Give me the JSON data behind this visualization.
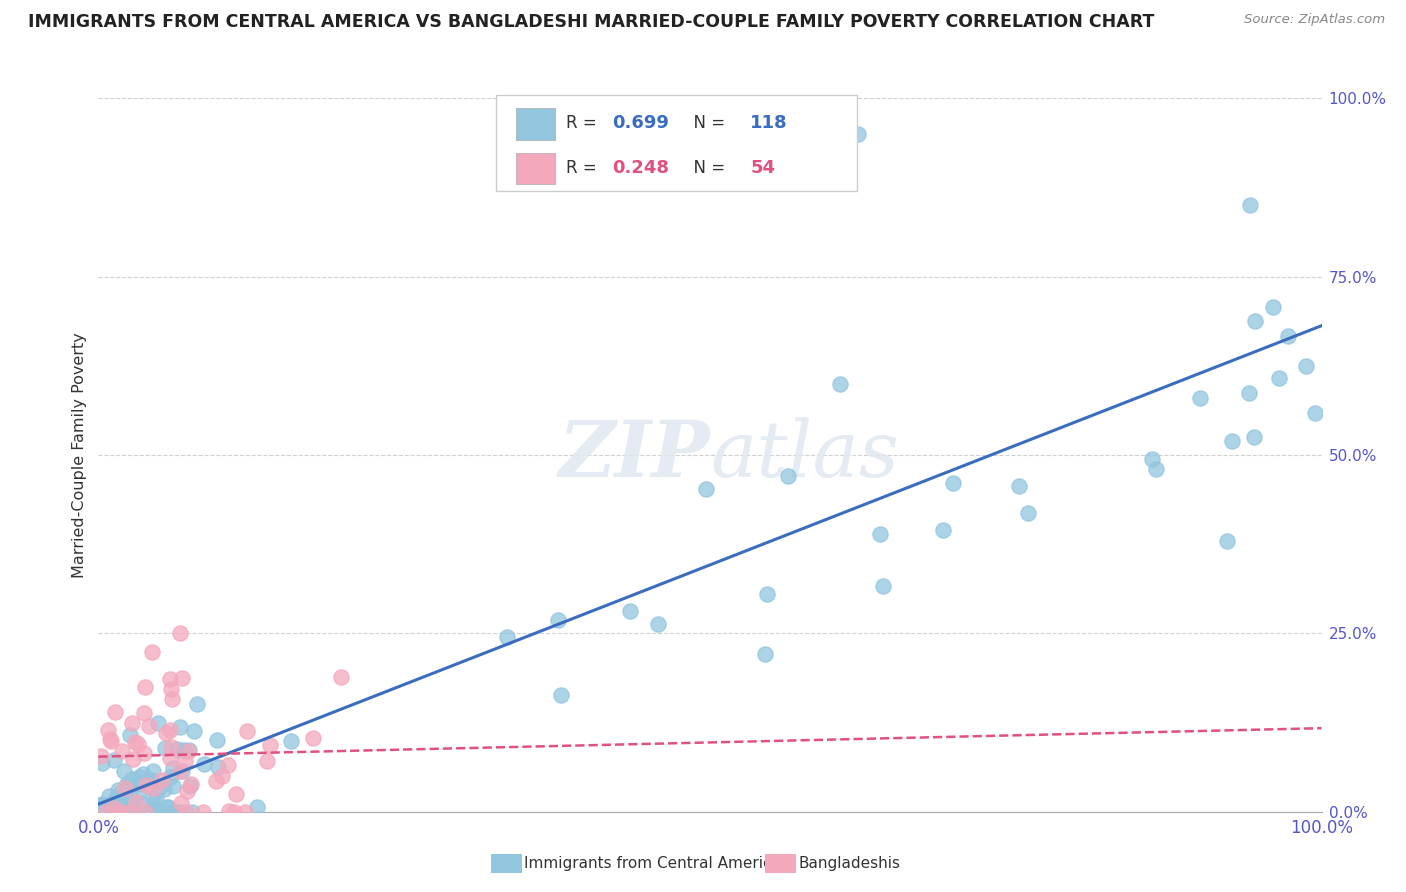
{
  "title": "IMMIGRANTS FROM CENTRAL AMERICA VS BANGLADESHI MARRIED-COUPLE FAMILY POVERTY CORRELATION CHART",
  "source": "Source: ZipAtlas.com",
  "ylabel": "Married-Couple Family Poverty",
  "yticks": [
    "0.0%",
    "25.0%",
    "50.0%",
    "75.0%",
    "100.0%"
  ],
  "ytick_vals": [
    0.0,
    0.25,
    0.5,
    0.75,
    1.0
  ],
  "legend1_r": "0.699",
  "legend1_n": "118",
  "legend2_r": "0.248",
  "legend2_n": "54",
  "blue_color": "#92c5de",
  "pink_color": "#f4a8bc",
  "blue_line_color": "#3a6dbf",
  "pink_line_color": "#e05080",
  "background_color": "#ffffff",
  "watermark": "ZIPatlas"
}
